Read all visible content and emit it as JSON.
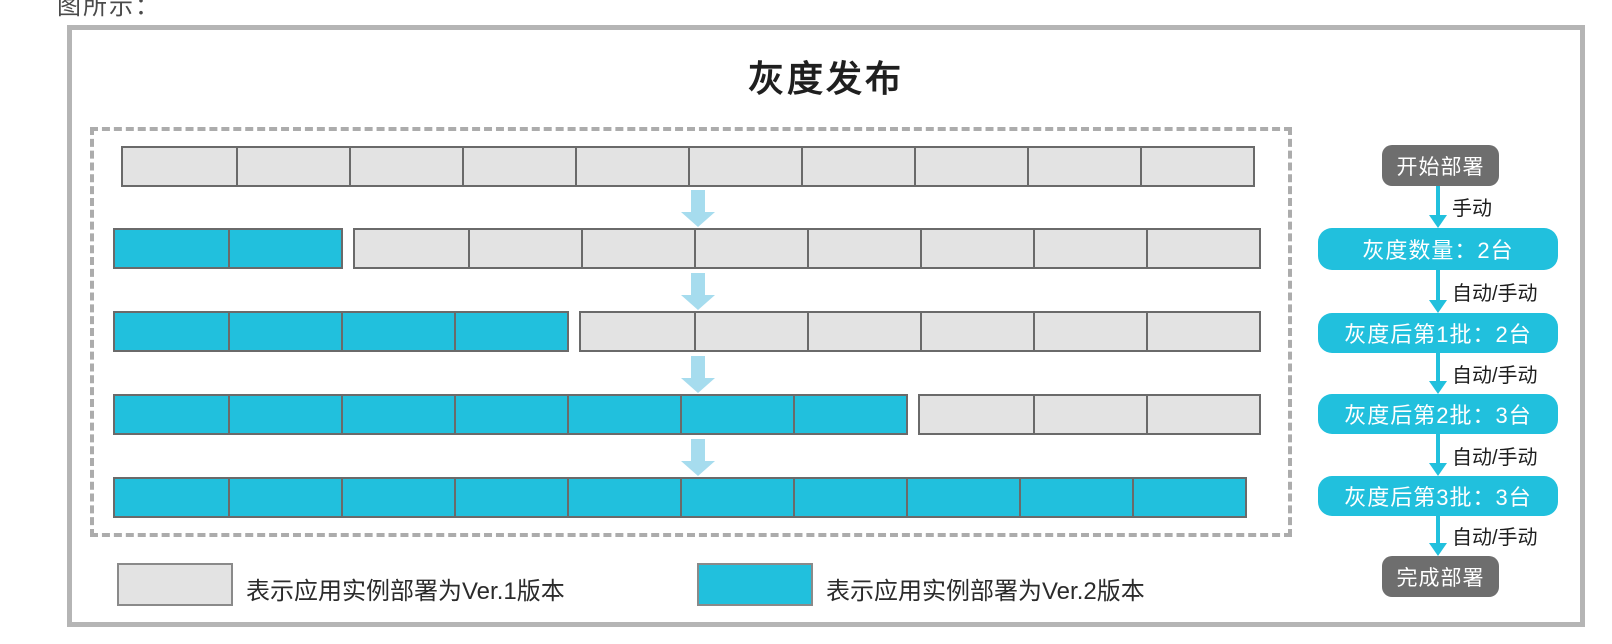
{
  "page": {
    "partial_top_text": "图所示："
  },
  "diagram": {
    "title": "灰度发布",
    "colors": {
      "accent": "#21c0dd",
      "softArrow": "#a6dcee",
      "ver1": "#e3e3e3",
      "cellBorder": "#6a6a6a",
      "darkNode": "#6e6e6e"
    },
    "grid": {
      "total_instances_per_row": 10,
      "rows": [
        {
          "name": "initial-all-ver1",
          "ver2_count": 0,
          "ver1_count": 10
        },
        {
          "name": "after-gray-quantity",
          "ver2_count": 2,
          "ver1_count": 8
        },
        {
          "name": "after-batch-1",
          "ver2_count": 4,
          "ver1_count": 6
        },
        {
          "name": "after-batch-2",
          "ver2_count": 7,
          "ver1_count": 3
        },
        {
          "name": "after-batch-3-all-ver2",
          "ver2_count": 10,
          "ver1_count": 0
        }
      ]
    },
    "legend": [
      {
        "swatch": "ver1",
        "label": "表示应用实例部署为Ver.1版本"
      },
      {
        "swatch": "ver2",
        "label": "表示应用实例部署为Ver.2版本"
      }
    ],
    "flow": {
      "nodes": [
        {
          "id": "start",
          "label": "开始部署",
          "style": "dark"
        },
        {
          "id": "gray-quantity",
          "label": "灰度数量：2台",
          "style": "accent"
        },
        {
          "id": "batch-1",
          "label": "灰度后第1批：2台",
          "style": "accent"
        },
        {
          "id": "batch-2",
          "label": "灰度后第2批：3台",
          "style": "accent"
        },
        {
          "id": "batch-3",
          "label": "灰度后第3批：3台",
          "style": "accent"
        },
        {
          "id": "finish",
          "label": "完成部署",
          "style": "dark"
        }
      ],
      "edges": [
        {
          "label": "手动"
        },
        {
          "label": "自动/手动"
        },
        {
          "label": "自动/手动"
        },
        {
          "label": "自动/手动"
        },
        {
          "label": "自动/手动"
        }
      ]
    }
  }
}
